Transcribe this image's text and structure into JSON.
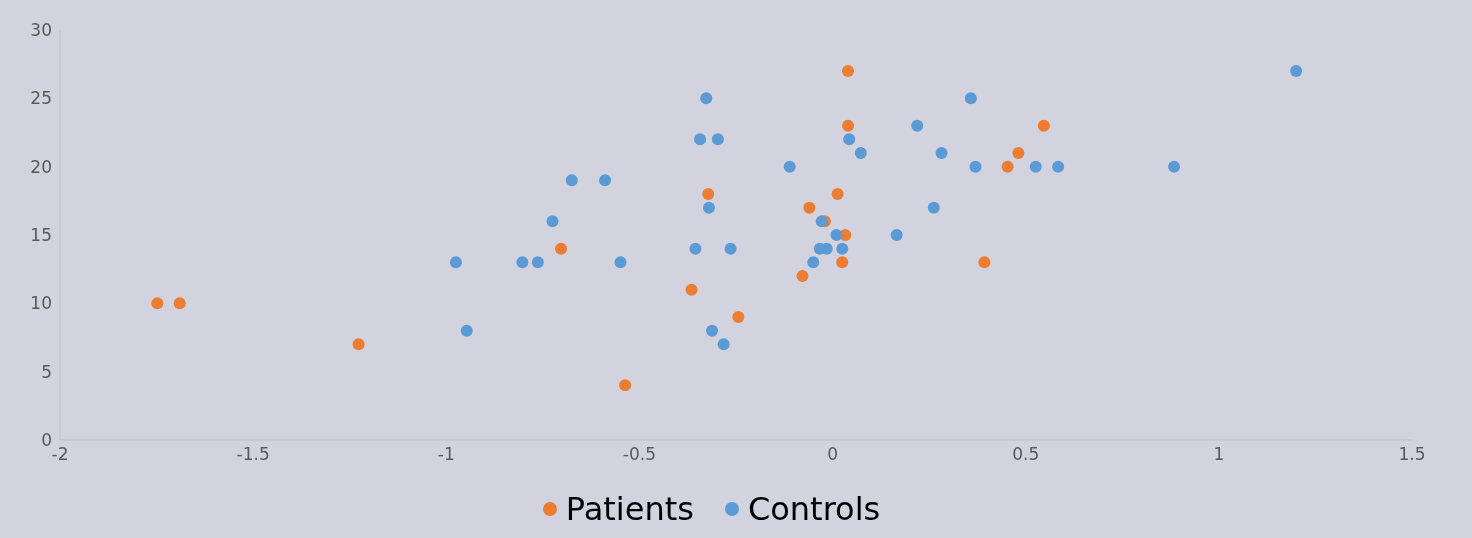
{
  "chart_data": {
    "type": "scatter",
    "marker": "circle",
    "legend": "bottom",
    "grid": false,
    "xlim": [
      -2,
      1.5
    ],
    "xticks": [
      -2,
      -1.5,
      -1,
      -0.5,
      0,
      0.5,
      1,
      1.5
    ],
    "ylim": [
      0,
      30
    ],
    "yticks": [
      0,
      5,
      10,
      15,
      20,
      25,
      30
    ],
    "series": [
      {
        "name": "Patients",
        "color": "#ed7d31",
        "x": [
          -1.748,
          -1.69,
          -1.227,
          -0.703,
          -0.537,
          -0.365,
          -0.322,
          -0.244,
          -0.078,
          -0.06,
          -0.02,
          0.013,
          0.025,
          0.033,
          0.04,
          0.04,
          0.393,
          0.453,
          0.481,
          0.547
        ],
        "values": [
          10,
          10,
          7,
          14,
          4,
          11,
          18,
          9,
          12,
          17,
          16,
          18,
          13,
          15,
          27,
          23,
          13,
          20,
          21,
          23
        ]
      },
      {
        "name": "Controls",
        "color": "#5b9bd5",
        "x": [
          -0.975,
          -0.947,
          -0.803,
          -0.763,
          -0.725,
          -0.675,
          -0.589,
          -0.549,
          -0.355,
          -0.343,
          -0.327,
          -0.32,
          -0.312,
          -0.297,
          -0.282,
          -0.264,
          -0.111,
          -0.05,
          -0.033,
          -0.028,
          -0.015,
          0.01,
          0.025,
          0.043,
          0.073,
          0.166,
          0.219,
          0.262,
          0.282,
          0.358,
          0.37,
          0.526,
          0.584,
          0.884,
          1.2
        ],
        "values": [
          13,
          8,
          13,
          13,
          16,
          19,
          19,
          13,
          14,
          22,
          25,
          17,
          8,
          22,
          7,
          14,
          20,
          13,
          14,
          16,
          14,
          15,
          14,
          22,
          21,
          15,
          23,
          17,
          21,
          25,
          20,
          20,
          20,
          20,
          27
        ]
      }
    ]
  }
}
